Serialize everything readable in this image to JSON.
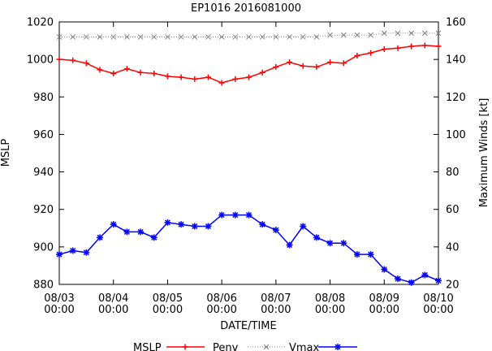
{
  "chart_data": {
    "type": "line",
    "title": "EP1016 2016081000",
    "xlabel": "DATE/TIME",
    "ylabel_left": "MSLP",
    "ylabel_right": "Maximum Winds [kt]",
    "x_ticks": [
      {
        "line1": "08/03",
        "line2": "00:00"
      },
      {
        "line1": "08/04",
        "line2": "00:00"
      },
      {
        "line1": "08/05",
        "line2": "00:00"
      },
      {
        "line1": "08/06",
        "line2": "00:00"
      },
      {
        "line1": "08/07",
        "line2": "00:00"
      },
      {
        "line1": "08/08",
        "line2": "00:00"
      },
      {
        "line1": "08/09",
        "line2": "00:00"
      },
      {
        "line1": "08/10",
        "line2": "00:00"
      }
    ],
    "y_left_ticks": [
      880,
      900,
      920,
      940,
      960,
      980,
      1000,
      1020
    ],
    "y_right_ticks": [
      20,
      40,
      60,
      80,
      100,
      120,
      140,
      160
    ],
    "ylim_left": [
      880,
      1020
    ],
    "ylim_right": [
      20,
      160
    ],
    "x_range_days": [
      0,
      7
    ],
    "grid": false,
    "legend_position": "bottom",
    "legend_title": "MSLP",
    "colors": {
      "penv": "#ff0000",
      "vmax_mslp": "#808080",
      "vmax_wind": "#0000ff"
    },
    "series": [
      {
        "name": "Penv",
        "axis": "left",
        "marker": "plus",
        "style": "solid",
        "color": "#ff0000",
        "x": [
          0,
          0.25,
          0.5,
          0.75,
          1.0,
          1.25,
          1.5,
          1.75,
          2.0,
          2.25,
          2.5,
          2.75,
          3.0,
          3.25,
          3.5,
          3.75,
          4.0,
          4.25,
          4.5,
          4.75,
          5.0,
          5.25,
          5.5,
          5.75,
          6.0,
          6.25,
          6.5,
          6.75,
          7.0
        ],
        "values": [
          1000,
          999.5,
          998,
          994.5,
          992.5,
          995,
          993,
          992.5,
          991,
          990.5,
          989.5,
          990.5,
          987.5,
          989.5,
          990.5,
          993,
          996,
          998.5,
          996.5,
          996,
          998.5,
          998,
          1002,
          1003.5,
          1005.5,
          1006,
          1007,
          1007.5,
          1007
        ]
      },
      {
        "name": "Vmax",
        "axis": "left",
        "marker": "x",
        "style": "dotted",
        "color": "#808080",
        "x": [
          0,
          0.25,
          0.5,
          0.75,
          1.0,
          1.25,
          1.5,
          1.75,
          2.0,
          2.25,
          2.5,
          2.75,
          3.0,
          3.25,
          3.5,
          3.75,
          4.0,
          4.25,
          4.5,
          4.75,
          5.0,
          5.25,
          5.5,
          5.75,
          6.0,
          6.25,
          6.5,
          6.75,
          7.0
        ],
        "values": [
          1012,
          1012,
          1012,
          1012,
          1012,
          1012,
          1012,
          1012,
          1012,
          1012,
          1012,
          1012,
          1012,
          1012,
          1012,
          1012,
          1012,
          1012,
          1012,
          1012,
          1013,
          1013,
          1013,
          1013,
          1014,
          1014,
          1014,
          1014,
          1014
        ]
      },
      {
        "name": "",
        "axis": "right",
        "marker": "star",
        "style": "solid",
        "color": "#0000ff",
        "x": [
          0,
          0.25,
          0.5,
          0.75,
          1.0,
          1.25,
          1.5,
          1.75,
          2.0,
          2.25,
          2.5,
          2.75,
          3.0,
          3.25,
          3.5,
          3.75,
          4.0,
          4.25,
          4.5,
          4.75,
          5.0,
          5.25,
          5.5,
          5.75,
          6.0,
          6.25,
          6.5,
          6.75,
          7.0
        ],
        "values": [
          36,
          38,
          37,
          45,
          52,
          48,
          48,
          45,
          53,
          52,
          51,
          51,
          57,
          57,
          57,
          52,
          49,
          41,
          51,
          45,
          42,
          42,
          36,
          36,
          28,
          23,
          21,
          25,
          22
        ]
      }
    ]
  }
}
